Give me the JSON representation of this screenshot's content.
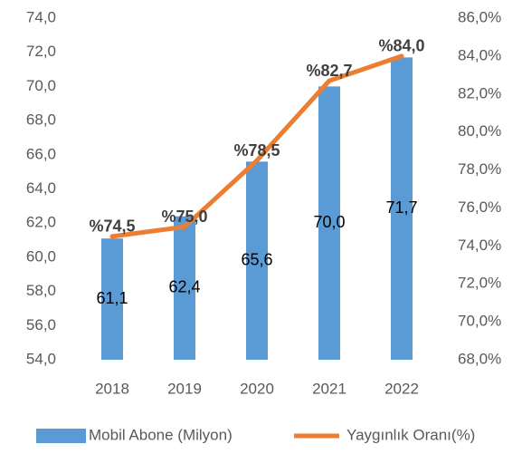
{
  "chart_data": {
    "type": "bar",
    "categories": [
      "2018",
      "2019",
      "2020",
      "2021",
      "2022"
    ],
    "series": [
      {
        "name": "Mobil Abone (Milyon)",
        "type": "bar",
        "color": "#5b9bd5",
        "values": [
          61.1,
          62.4,
          65.6,
          70.0,
          71.7
        ],
        "value_labels": [
          "61,1",
          "62,4",
          "65,6",
          "70,0",
          "71,7"
        ]
      },
      {
        "name": "Yaygınlık Oranı(%)",
        "type": "line",
        "axis": "y2",
        "color": "#ed7d31",
        "values": [
          74.5,
          75.0,
          78.5,
          82.7,
          84.0
        ],
        "value_labels": [
          "%74,5",
          "%75,0",
          "%78,5",
          "%82,7",
          "%84,0"
        ]
      }
    ],
    "ylim": [
      54,
      74
    ],
    "yticks": [
      {
        "value": 54,
        "label": "54,0"
      },
      {
        "value": 56,
        "label": "56,0"
      },
      {
        "value": 58,
        "label": "58,0"
      },
      {
        "value": 60,
        "label": "60,0"
      },
      {
        "value": 62,
        "label": "62,0"
      },
      {
        "value": 64,
        "label": "64,0"
      },
      {
        "value": 66,
        "label": "66,0"
      },
      {
        "value": 68,
        "label": "68,0"
      },
      {
        "value": 70,
        "label": "70,0"
      },
      {
        "value": 72,
        "label": "72,0"
      },
      {
        "value": 74,
        "label": "74,0"
      }
    ],
    "y2lim": [
      68,
      86
    ],
    "y2ticks": [
      {
        "value": 68,
        "label": "68,0%"
      },
      {
        "value": 70,
        "label": "70,0%"
      },
      {
        "value": 72,
        "label": "72,0%"
      },
      {
        "value": 74,
        "label": "74,0%"
      },
      {
        "value": 76,
        "label": "76,0%"
      },
      {
        "value": 78,
        "label": "78,0%"
      },
      {
        "value": 80,
        "label": "80,0%"
      },
      {
        "value": 82,
        "label": "82,0%"
      },
      {
        "value": 84,
        "label": "84,0%"
      },
      {
        "value": 86,
        "label": "86,0%"
      }
    ],
    "grid": false,
    "legend": "bottom"
  }
}
